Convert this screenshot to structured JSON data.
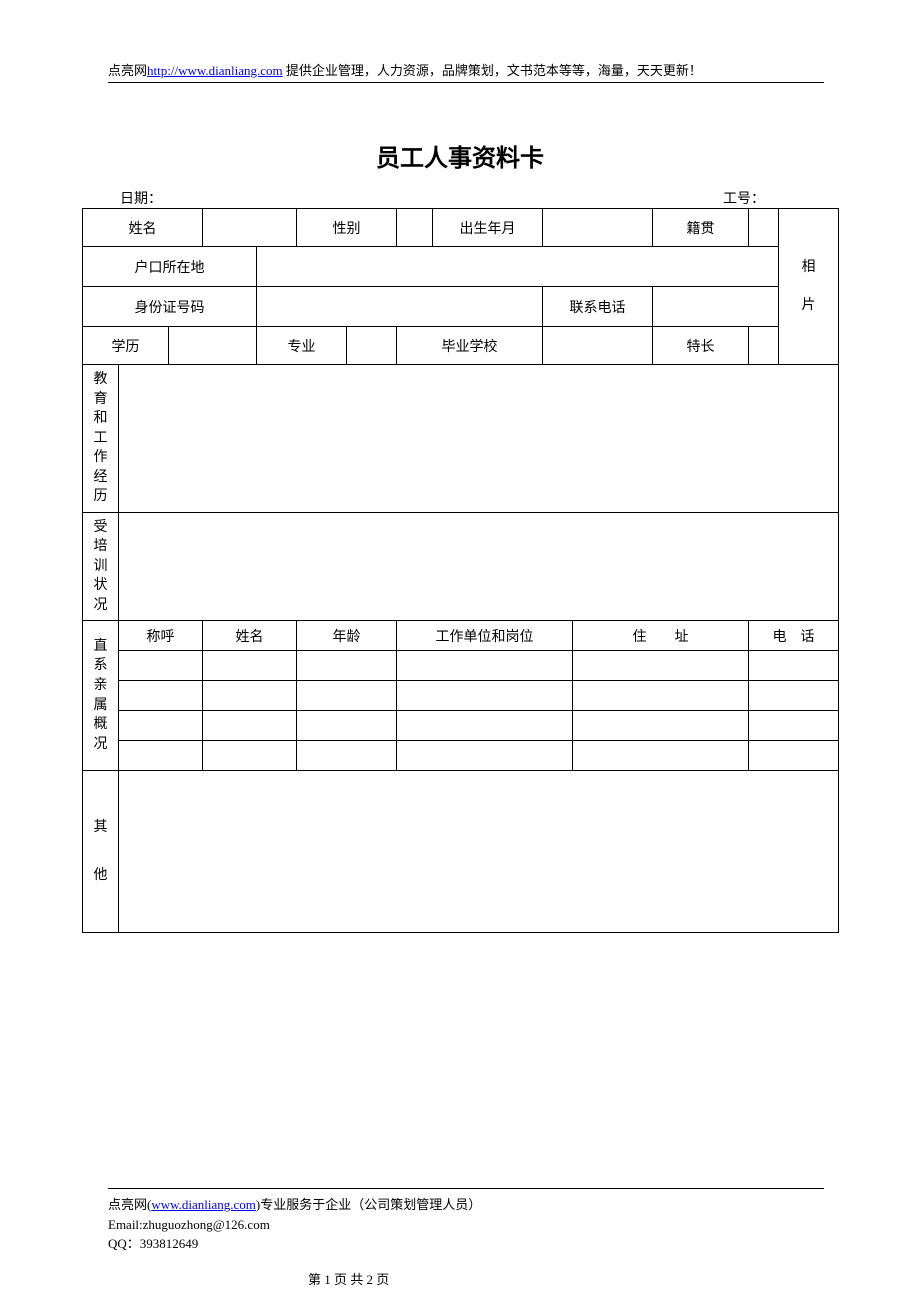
{
  "header": {
    "prefix": "点亮网",
    "url": "http://www.dianliang.com",
    "suffix": " 提供企业管理，人力资源，品牌策划，文书范本等等，海量，天天更新！"
  },
  "title": "员工人事资料卡",
  "meta": {
    "date_label": "日期：",
    "id_label": "工号："
  },
  "labels": {
    "name": "姓名",
    "gender": "性别",
    "birth": "出生年月",
    "native": "籍贯",
    "hukou": "户口所在地",
    "photo_l1": "相",
    "photo_l2": "片",
    "idno": "身份证号码",
    "phone": "联系电话",
    "edu": "学历",
    "major": "专业",
    "school": "毕业学校",
    "specialty": "特长",
    "eduwork": "教育和工作经历",
    "training": "受培训状况",
    "family": "直系亲属概况",
    "fam_rel": "称呼",
    "fam_name": "姓名",
    "fam_age": "年龄",
    "fam_work": "工作单位和岗位",
    "fam_addr": "住　　址",
    "fam_phone": "电　话",
    "other_l1": "其",
    "other_l2": "他"
  },
  "footer": {
    "line1_prefix": "点亮网(",
    "line1_url": "www.dianliang.com",
    "line1_suffix": ")专业服务于企业（公司策划管理人员）",
    "email": "Email:zhuguozhong@126.com",
    "qq": "QQ：393812649",
    "pager": "第 1 页 共 2 页"
  },
  "style": {
    "page_bg": "#ffffff",
    "text_color": "#000000",
    "link_color": "#0000ee",
    "border_color": "#000000",
    "body_font": "SimSun",
    "title_font": "SimHei",
    "title_fontsize": 24,
    "body_fontsize": 14,
    "header_fontsize": 13,
    "row_h1": 38,
    "row_h_photo": 40,
    "row_eduwork_h": 148,
    "row_training_h": 108,
    "row_fam_head_h": 30,
    "row_fam_body_h": 30,
    "row_other_h": 162
  }
}
